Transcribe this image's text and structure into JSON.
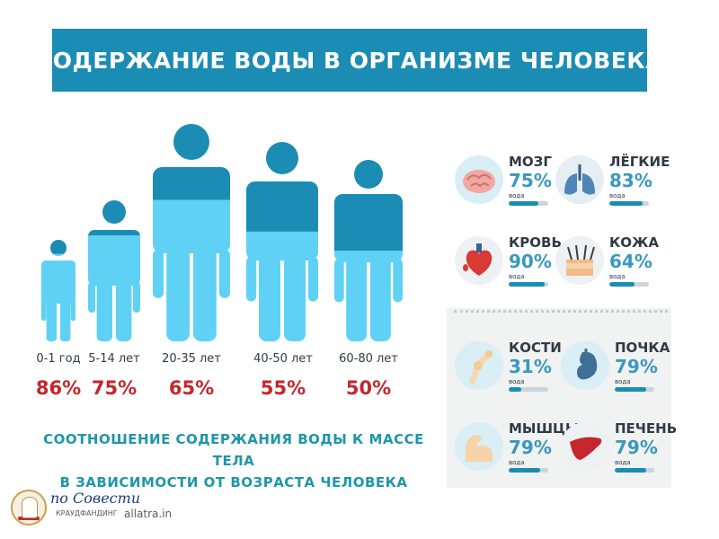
{
  "title": "СОДЕРЖАНИЕ ВОДЫ В ОРГАНИЗМЕ ЧЕЛОВЕКА",
  "ages": [
    {
      "label": "0-1 год",
      "percent": "86%",
      "water_fraction": 0.86
    },
    {
      "label": "5-14 лет",
      "percent": "75%",
      "water_fraction": 0.75
    },
    {
      "label": "20-35 лет",
      "percent": "65%",
      "water_fraction": 0.65
    },
    {
      "label": "40-50 лет",
      "percent": "55%",
      "water_fraction": 0.55
    },
    {
      "label": "60-80 лет",
      "percent": "50%",
      "water_fraction": 0.5
    }
  ],
  "caption": {
    "line1": "СООТНОШЕНИЕ СОДЕРЖАНИЯ ВОДЫ К МАССЕ ТЕЛА",
    "line2": "В ЗАВИСИМОСТИ ОТ ВОЗРАСТА ЧЕЛОВЕКА"
  },
  "organs": [
    {
      "name": "МОЗГ",
      "percent": "75%",
      "unit": "вода",
      "value": 0.75,
      "icon": "brain-icon"
    },
    {
      "name": "ЛЁГКИЕ",
      "percent": "83%",
      "unit": "вода",
      "value": 0.83,
      "icon": "lungs-icon"
    },
    {
      "name": "КРОВЬ",
      "percent": "90%",
      "unit": "вода",
      "value": 0.9,
      "icon": "heart-icon"
    },
    {
      "name": "КОЖА",
      "percent": "64%",
      "unit": "вода",
      "value": 0.64,
      "icon": "skin-icon"
    },
    {
      "name": "КОСТИ",
      "percent": "31%",
      "unit": "вода",
      "value": 0.31,
      "icon": "bone-icon"
    },
    {
      "name": "ПОЧКА",
      "percent": "79%",
      "unit": "вода",
      "value": 0.79,
      "icon": "kidney-icon"
    },
    {
      "name": "МЫШЦЫ",
      "percent": "79%",
      "unit": "вода",
      "value": 0.79,
      "icon": "muscle-icon"
    },
    {
      "name": "ПЕЧЕНЬ",
      "percent": "79%",
      "unit": "вода",
      "value": 0.79,
      "icon": "liver-icon"
    }
  ],
  "footer": {
    "brand_script": "по Совести",
    "brand_sub": "КРАУДФАНДИНГ",
    "site": "allatra.in"
  },
  "colors": {
    "banner": "#1b8cb4",
    "body_dark": "#1b8cb4",
    "water_light": "#5fd1f4",
    "percent_red": "#c5262d",
    "organ_percent": "#3a98bf",
    "caption": "#1f96a9"
  }
}
